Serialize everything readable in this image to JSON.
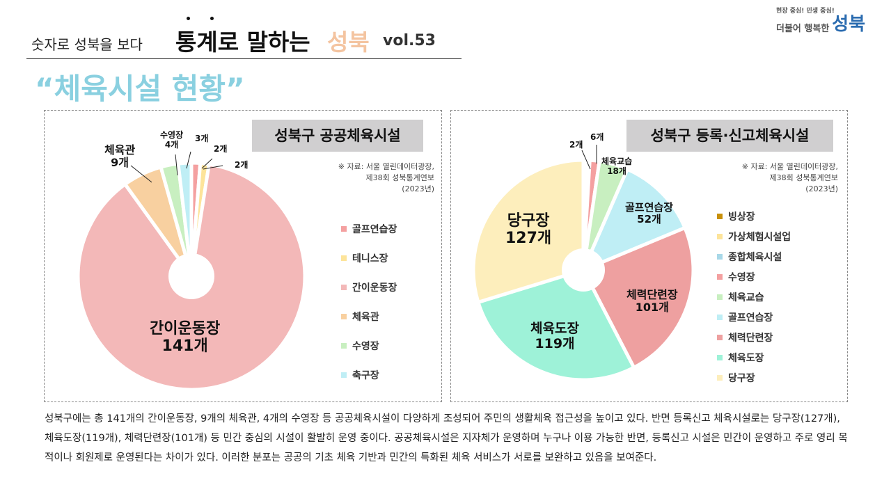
{
  "header": {
    "subtitle": "숫자로 성북을 보다",
    "title": "통계로 말하는",
    "title_accent": "성북",
    "volume": "vol.53",
    "topic": "“체육시설 현황”"
  },
  "logo": {
    "slogan": "현장 중심! 민생 중심!",
    "line2": "더불어 행복한",
    "brand": "성북"
  },
  "source": [
    "※ 자료: 서울 열린데이터광장,",
    "제38회 성북통계연보",
    "(2023년)"
  ],
  "chart_data": [
    {
      "type": "pie",
      "title": "성북구 공공체육시설",
      "legend_placement": "right",
      "categories": [
        "골프연습장",
        "테니스장",
        "간이운동장",
        "체육관",
        "수영장",
        "축구장"
      ],
      "values": [
        2,
        2,
        141,
        9,
        4,
        3
      ],
      "colors": [
        "#f4a0a0",
        "#fde49a",
        "#f3b8b8",
        "#f8d0a0",
        "#c8efc0",
        "#bfeef5"
      ],
      "labels": {
        "gc": "2개",
        "tn": "2개",
        "gy": "간이운동장",
        "gyv": "141개",
        "ch": "체육관",
        "chv": "9개",
        "sw": "수영장",
        "swv": "4개",
        "fb": "3개"
      }
    },
    {
      "type": "pie",
      "title": "성북구 등록·신고체육시설",
      "legend_placement": "right",
      "categories": [
        "빙상장",
        "가상체험시설업",
        "종합체육시설",
        "수영장",
        "체육교습",
        "골프연습장",
        "체력단련장",
        "체육도장",
        "당구장"
      ],
      "values": [
        1,
        1,
        2,
        6,
        18,
        52,
        101,
        119,
        127
      ],
      "colors": [
        "#c8900a",
        "#fde49a",
        "#a8d8e8",
        "#f4a0a0",
        "#c8efc0",
        "#bfeef5",
        "#eea0a0",
        "#9ef2d8",
        "#fdeebc"
      ],
      "labels": {
        "jh": "2개",
        "sw": "6개",
        "ed": "체육교습",
        "edv": "18개",
        "gf": "골프연습장",
        "gfv": "52개",
        "fit": "체력단련장",
        "fitv": "101개",
        "mart": "체육도장",
        "martv": "119개",
        "bil": "당구장",
        "bilv": "127개"
      }
    }
  ],
  "summary": "성북구에는 총 141개의 간이운동장, 9개의 체육관, 4개의 수영장 등 공공체육시설이 다양하게 조성되어 주민의 생활체육 접근성을 높이고 있다.  반면 등록신고 체육시설로는 당구장(127개), 체육도장(119개), 체력단련장(101개) 등 민간 중심의 시설이 활발히 운영 중이다. 공공체육시설은 지자체가 운영하며 누구나 이용 가능한 반면, 등록신고 시설은 민간이 운영하고 주로 영리 목적이나 회원제로 운영된다는 차이가 있다. 이러한 분포는 공공의 기초 체육 기반과 민간의 특화된 체육 서비스가 서로를 보완하고 있음을 보여준다."
}
